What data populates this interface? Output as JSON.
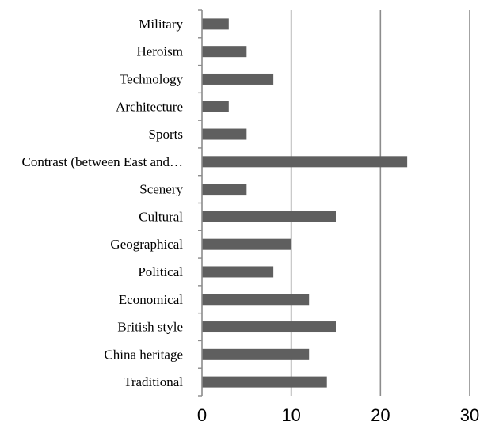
{
  "chart_data": {
    "type": "bar",
    "orientation": "horizontal",
    "categories": [
      "Military",
      "Heroism",
      "Technology",
      "Architecture",
      "Sports",
      "Contrast (between East and…",
      "Scenery",
      "Cultural",
      "Geographical",
      "Political",
      "Economical",
      "British style",
      "China heritage",
      "Traditional"
    ],
    "values": [
      3,
      5,
      8,
      3,
      5,
      23,
      5,
      15,
      10,
      8,
      12,
      15,
      12,
      14
    ],
    "xlim": [
      0,
      30
    ],
    "xticks": [
      "0",
      "10",
      "20",
      "30"
    ],
    "grid": true,
    "bar_color": "#5f5f5f",
    "grid_color": "#8c8c8c",
    "title": "",
    "xlabel": "",
    "ylabel": ""
  }
}
